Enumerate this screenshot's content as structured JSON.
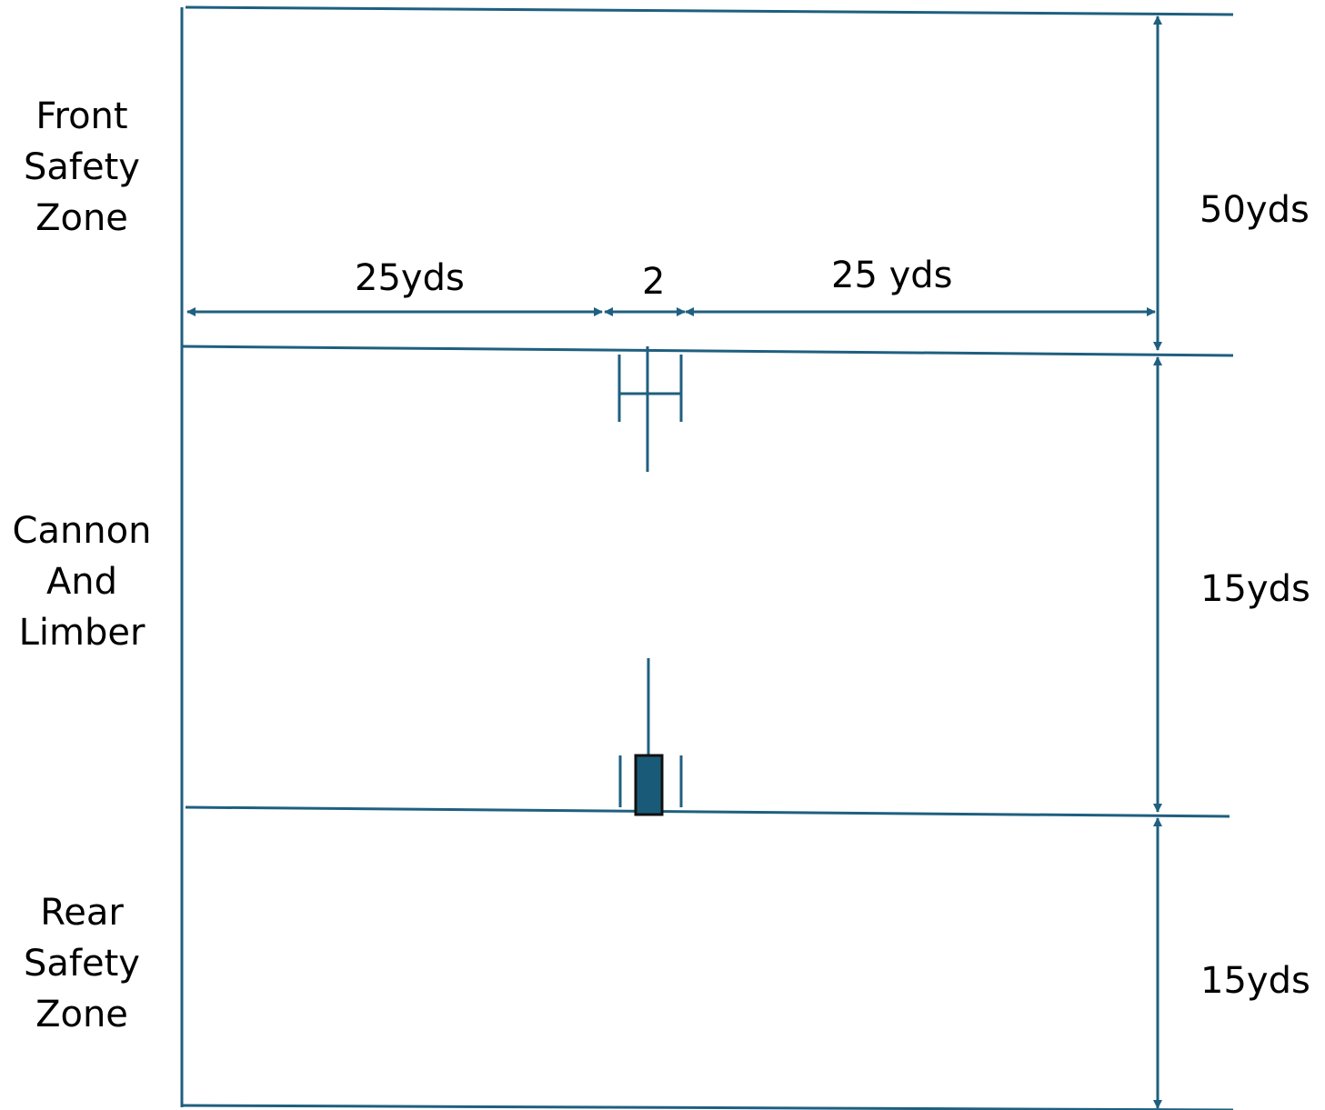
{
  "colors": {
    "line": "#1f5f7f",
    "fill": "#1a5a79",
    "outline": "#111111",
    "text": "#000000"
  },
  "zones": {
    "front": [
      "Front",
      "Safety",
      "Zone"
    ],
    "cannon": [
      "Cannon",
      "And",
      "Limber"
    ],
    "rear": [
      "Rear",
      "Safety",
      "Zone"
    ]
  },
  "dimensions": {
    "left_width": "25yds",
    "center_width": "2",
    "right_width": "25 yds",
    "front_depth": "50yds",
    "cannon_depth": "15yds",
    "rear_depth": "15yds"
  }
}
